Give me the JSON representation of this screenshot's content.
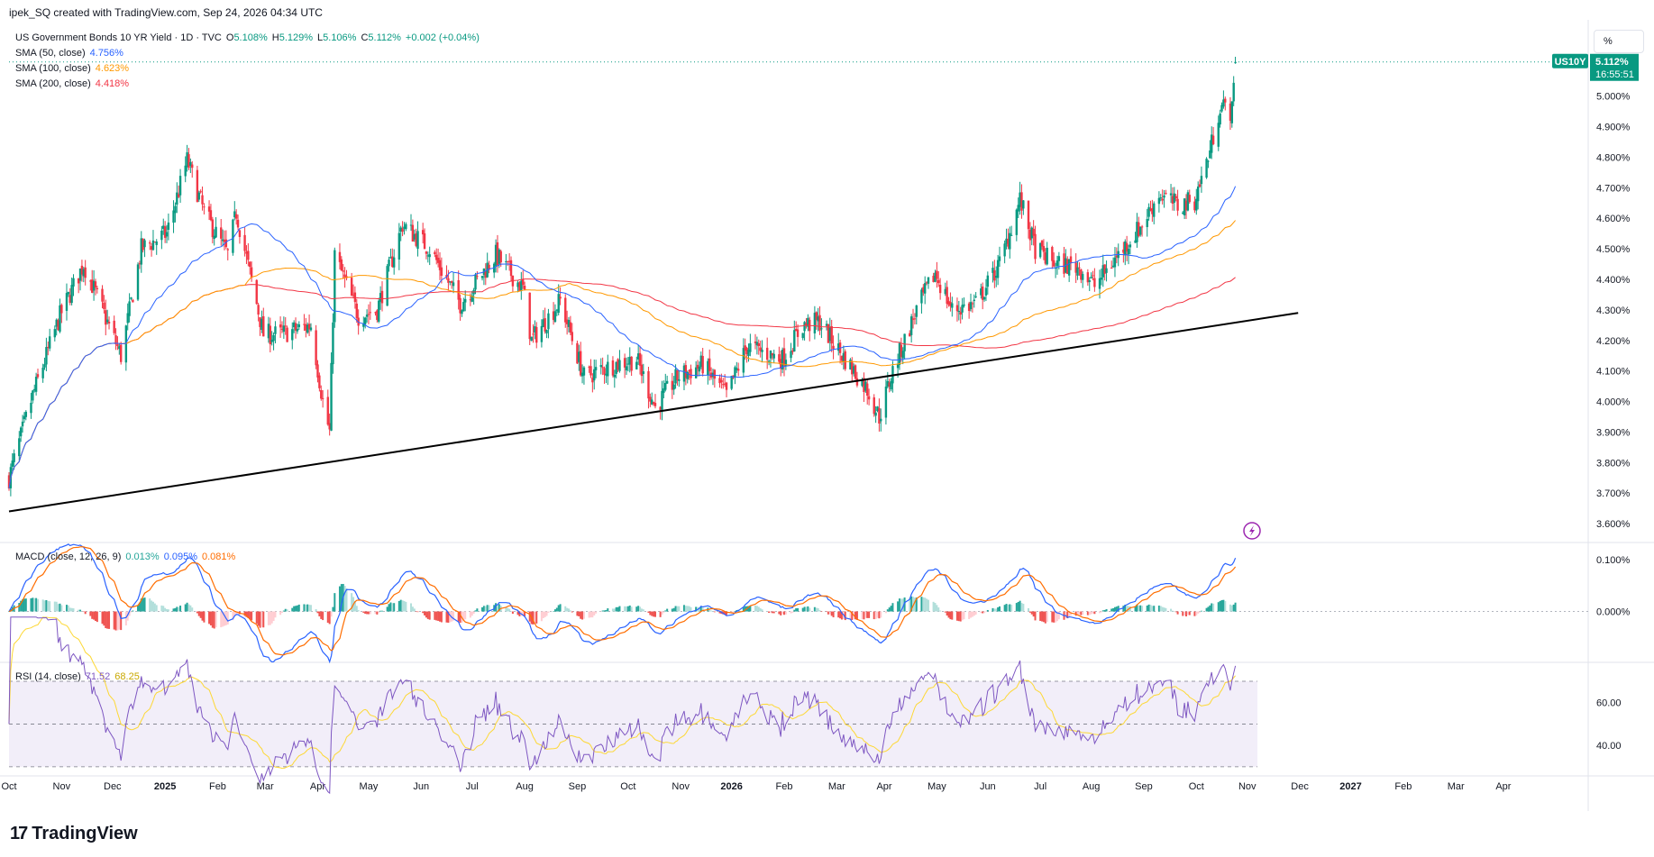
{
  "header": {
    "credit": "ipek_SQ created with TradingView.com, Sep 24, 2026 04:34 UTC"
  },
  "legend": {
    "symbol": "US Government Bonds 10 YR Yield · 1D · TVC",
    "o_label": "O",
    "o": "5.108%",
    "h_label": "H",
    "h": "5.129%",
    "l_label": "L",
    "l": "5.106%",
    "c_label": "C",
    "c": "5.112%",
    "change": "+0.002 (+0.04%)",
    "sma50_label": "SMA (50, close)",
    "sma50": "4.756%",
    "sma100_label": "SMA (100, close)",
    "sma100": "4.623%",
    "sma200_label": "SMA (200, close)",
    "sma200": "4.418%",
    "macd_label": "MACD (close, 12, 26, 9)",
    "macd_hist": "0.013%",
    "macd_line": "0.095%",
    "macd_signal": "0.081%",
    "rsi_label": "RSI (14, close)",
    "rsi": "71.52",
    "rsi_ma": "68.25"
  },
  "price_badge": {
    "ticker": "US10Y",
    "price": "5.112%",
    "countdown": "16:55:51"
  },
  "unit_button": "%",
  "logo_text": "TradingView",
  "colors": {
    "up": "#089981",
    "down": "#f23645",
    "sma50": "#2962ff",
    "sma100": "#ff9800",
    "sma200": "#f23645",
    "macd": "#2962ff",
    "signal": "#ff6d00",
    "hist_up": "#26a69a",
    "hist_down": "#ef5350",
    "rsi": "#7e57c2",
    "rsi_ma": "#fdd835",
    "rsi_band": "#7e57c2",
    "badge": "#089981",
    "trendline": "#000000"
  },
  "chart_data": [
    {
      "type": "candlestick",
      "title": "US Government Bonds 10 YR Yield · 1D · TVC",
      "y_unit": "%",
      "ylim": [
        3.55,
        5.25
      ],
      "y_ticks": [
        "3.600%",
        "3.700%",
        "3.800%",
        "3.900%",
        "4.000%",
        "4.100%",
        "4.200%",
        "4.300%",
        "4.400%",
        "4.500%",
        "4.600%",
        "4.700%",
        "4.800%",
        "4.900%",
        "5.000%"
      ],
      "x_ticks": [
        "Oct",
        "Nov",
        "Dec",
        "2025",
        "Feb",
        "Mar",
        "Apr",
        "May",
        "Jun",
        "Jul",
        "Aug",
        "Sep",
        "Oct",
        "Nov",
        "2026",
        "Feb",
        "Mar",
        "Apr",
        "May",
        "Jun",
        "Jul",
        "Aug",
        "Sep",
        "Oct",
        "Nov",
        "Dec",
        "2027",
        "Feb",
        "Mar",
        "Apr"
      ],
      "x_range": [
        "2024-10-01",
        "2027-04-20"
      ],
      "last_date": "2026-09-24",
      "approx_close_path": [
        [
          "2024-10-01",
          3.75
        ],
        [
          "2024-10-15",
          4.02
        ],
        [
          "2024-10-31",
          4.28
        ],
        [
          "2024-11-14",
          4.45
        ],
        [
          "2024-11-25",
          4.3
        ],
        [
          "2024-12-06",
          4.15
        ],
        [
          "2024-12-18",
          4.5
        ],
        [
          "2025-01-02",
          4.55
        ],
        [
          "2025-01-14",
          4.79
        ],
        [
          "2025-01-24",
          4.62
        ],
        [
          "2025-02-07",
          4.48
        ],
        [
          "2025-02-12",
          4.62
        ],
        [
          "2025-02-28",
          4.22
        ],
        [
          "2025-03-10",
          4.22
        ],
        [
          "2025-03-28",
          4.25
        ],
        [
          "2025-04-04",
          4.0
        ],
        [
          "2025-04-08",
          3.9
        ],
        [
          "2025-04-11",
          4.48
        ],
        [
          "2025-04-25",
          4.28
        ],
        [
          "2025-05-06",
          4.3
        ],
        [
          "2025-05-21",
          4.58
        ],
        [
          "2025-06-06",
          4.5
        ],
        [
          "2025-06-24",
          4.32
        ],
        [
          "2025-07-15",
          4.48
        ],
        [
          "2025-07-31",
          4.37
        ],
        [
          "2025-08-05",
          4.2
        ],
        [
          "2025-08-22",
          4.33
        ],
        [
          "2025-09-05",
          4.08
        ],
        [
          "2025-09-22",
          4.12
        ],
        [
          "2025-10-06",
          4.14
        ],
        [
          "2025-10-17",
          3.98
        ],
        [
          "2025-10-30",
          4.08
        ],
        [
          "2025-11-14",
          4.12
        ],
        [
          "2025-11-28",
          4.02
        ],
        [
          "2025-12-10",
          4.18
        ],
        [
          "2025-12-31",
          4.14
        ],
        [
          "2026-01-12",
          4.25
        ],
        [
          "2026-01-22",
          4.26
        ],
        [
          "2026-02-03",
          4.16
        ],
        [
          "2026-02-19",
          4.04
        ],
        [
          "2026-02-26",
          3.95
        ],
        [
          "2026-03-06",
          4.1
        ],
        [
          "2026-03-20",
          4.3
        ],
        [
          "2026-03-31",
          4.42
        ],
        [
          "2026-04-10",
          4.3
        ],
        [
          "2026-04-24",
          4.32
        ],
        [
          "2026-05-08",
          4.45
        ],
        [
          "2026-05-20",
          4.66
        ],
        [
          "2026-05-29",
          4.5
        ],
        [
          "2026-06-10",
          4.45
        ],
        [
          "2026-06-24",
          4.44
        ],
        [
          "2026-07-03",
          4.38
        ],
        [
          "2026-07-17",
          4.48
        ],
        [
          "2026-07-31",
          4.58
        ],
        [
          "2026-08-10",
          4.68
        ],
        [
          "2026-08-21",
          4.64
        ],
        [
          "2026-08-31",
          4.66
        ],
        [
          "2026-09-09",
          4.82
        ],
        [
          "2026-09-15",
          4.97
        ],
        [
          "2026-09-22",
          4.95
        ],
        [
          "2026-09-24",
          5.112
        ]
      ],
      "sma50_last": 4.756,
      "sma100_last": 4.623,
      "sma200_last": 4.418,
      "trendline": [
        [
          "2024-10-01",
          3.64
        ],
        [
          "2026-10-31",
          4.29
        ]
      ]
    },
    {
      "type": "macd",
      "title": "MACD (close, 12, 26, 9)",
      "y_ticks": [
        "0.000%",
        "0.100%"
      ],
      "ylim": [
        -0.095,
        0.13
      ],
      "last": {
        "hist": 0.013,
        "macd": 0.095,
        "signal": 0.081
      }
    },
    {
      "type": "rsi",
      "title": "RSI (14, close)",
      "y_ticks": [
        "40.00",
        "60.00"
      ],
      "ylim": [
        27,
        78
      ],
      "bands": [
        30,
        50,
        70
      ],
      "last": {
        "rsi": 71.52,
        "ma": 68.25
      }
    }
  ]
}
